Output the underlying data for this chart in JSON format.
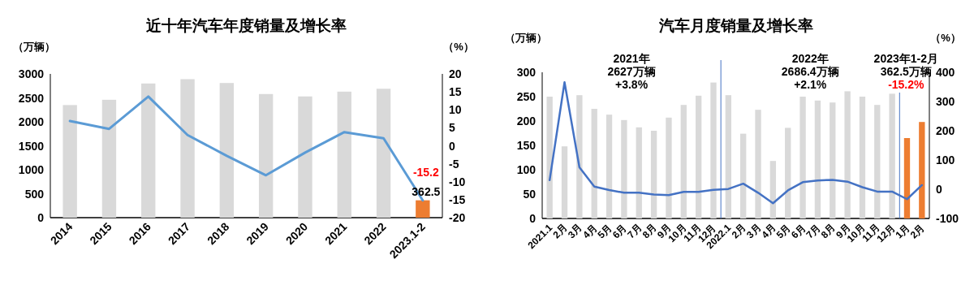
{
  "chart_data": [
    {
      "type": "bar",
      "title": "近十年汽车年度销量及增长率",
      "ylabel": "（万辆）",
      "y2label": "（%）",
      "categories": [
        "2014",
        "2015",
        "2016",
        "2017",
        "2018",
        "2019",
        "2020",
        "2021",
        "2022",
        "2023.1-2"
      ],
      "series": [
        {
          "colors": [
            "#d9d9d9",
            "#d9d9d9",
            "#d9d9d9",
            "#d9d9d9",
            "#d9d9d9",
            "#d9d9d9",
            "#d9d9d9",
            "#d9d9d9",
            "#d9d9d9",
            "#ed7d31"
          ],
          "values": [
            2350,
            2460,
            2800,
            2890,
            2810,
            2580,
            2530,
            2630,
            2690,
            362.5
          ],
          "value_labels": [
            null,
            null,
            null,
            null,
            null,
            null,
            null,
            null,
            null,
            "362.5"
          ]
        },
        {
          "type": "line",
          "axis": "y2",
          "color": "#5b9bd5",
          "values": [
            6.9,
            4.7,
            13.7,
            3.0,
            -2.8,
            -8.2,
            -1.9,
            3.8,
            2.1,
            -15.2
          ],
          "value_labels": [
            null,
            null,
            null,
            null,
            null,
            null,
            null,
            null,
            null,
            "-15.2"
          ]
        }
      ],
      "ylim": [
        0,
        3000
      ],
      "yticks": [
        0,
        500,
        1000,
        1500,
        2000,
        2500,
        3000
      ],
      "y2lim": [
        -20,
        20
      ],
      "y2ticks": [
        -20,
        -15,
        -10,
        -5,
        0,
        5,
        10,
        15,
        20
      ]
    },
    {
      "type": "bar",
      "title": "汽车月度销量及增长率",
      "ylabel": "（万辆）",
      "y2label": "（%）",
      "categories": [
        "2021.1",
        "2月",
        "3月",
        "4月",
        "5月",
        "6月",
        "7月",
        "8月",
        "9月",
        "10月",
        "11月",
        "12月",
        "2022.1",
        "2月",
        "3月",
        "4月",
        "5月",
        "6月",
        "7月",
        "8月",
        "9月",
        "10月",
        "11月",
        "12月",
        "1月",
        "2月"
      ],
      "series": [
        {
          "colors": [
            "#d9d9d9",
            "#d9d9d9",
            "#d9d9d9",
            "#d9d9d9",
            "#d9d9d9",
            "#d9d9d9",
            "#d9d9d9",
            "#d9d9d9",
            "#d9d9d9",
            "#d9d9d9",
            "#d9d9d9",
            "#d9d9d9",
            "#d9d9d9",
            "#d9d9d9",
            "#d9d9d9",
            "#d9d9d9",
            "#d9d9d9",
            "#d9d9d9",
            "#d9d9d9",
            "#d9d9d9",
            "#d9d9d9",
            "#d9d9d9",
            "#d9d9d9",
            "#d9d9d9",
            "#ed7d31",
            "#ed7d31"
          ],
          "values": [
            250,
            148,
            253,
            225,
            213,
            202,
            187,
            180,
            207,
            233,
            252,
            279,
            253,
            174,
            223,
            118,
            186,
            250,
            242,
            238,
            261,
            250,
            233,
            256,
            165,
            198
          ]
        },
        {
          "type": "line",
          "axis": "y2",
          "color": "#4472c4",
          "values": [
            31,
            366,
            75,
            9,
            -3,
            -12,
            -12,
            -18,
            -20,
            -9,
            -9,
            -2,
            1,
            19,
            -12,
            -48,
            -4,
            24,
            30,
            32,
            26,
            7,
            -8,
            -8,
            -34,
            14
          ]
        }
      ],
      "ylim": [
        0,
        300
      ],
      "yticks": [
        0,
        50,
        100,
        150,
        200,
        250,
        300
      ],
      "y2lim": [
        -100,
        400
      ],
      "y2ticks": [
        -100,
        0,
        100,
        200,
        300,
        400
      ],
      "ref_lines": [
        {
          "axis": "x",
          "value": "2022.1",
          "color": "#4472c4"
        },
        {
          "axis": "x",
          "value": "1月",
          "color": "#4472c4"
        }
      ],
      "annotations": [
        "2021年\n2627万辆\n+3.8%",
        "2022年\n2686.4万辆\n+2.1%",
        "2023年1-2月\n362.5万辆\n-15.2%"
      ]
    }
  ]
}
